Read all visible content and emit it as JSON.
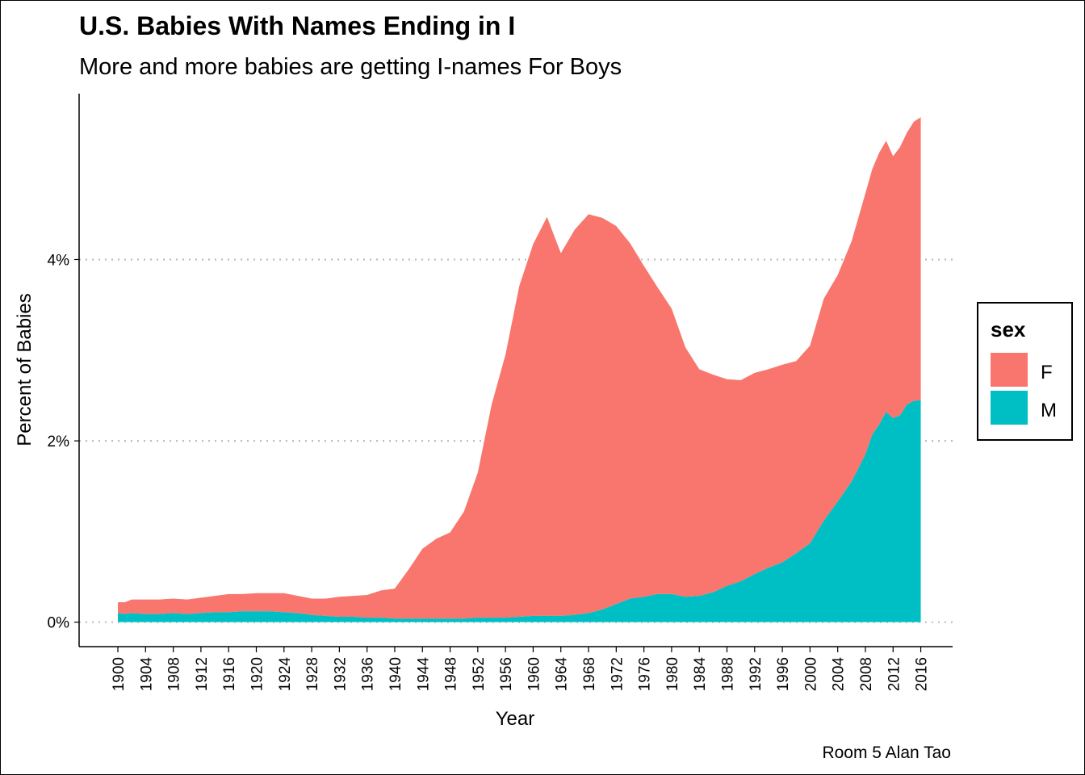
{
  "chart_data": {
    "type": "area",
    "stacked": true,
    "title": "U.S. Babies With Names Ending in I",
    "subtitle": "More and more babies are getting I-names For Boys",
    "xlabel": "Year",
    "ylabel": "Percent of Babies",
    "caption": "Room 5 Alan Tao",
    "x_ticks": [
      1900,
      1904,
      1908,
      1912,
      1916,
      1920,
      1924,
      1928,
      1932,
      1936,
      1940,
      1944,
      1948,
      1952,
      1956,
      1960,
      1964,
      1968,
      1972,
      1976,
      1980,
      1984,
      1988,
      1992,
      1996,
      2000,
      2004,
      2008,
      2012,
      2016
    ],
    "y_ticks": [
      0,
      0.02,
      0.04
    ],
    "y_tick_labels": [
      "0%",
      "2%",
      "4%"
    ],
    "xlim": [
      1894.4,
      2020.6
    ],
    "ylim": [
      -0.0027,
      0.0583
    ],
    "grid": "horizontal dotted major",
    "legend": {
      "title": "sex",
      "position": "right",
      "entries": [
        "F",
        "M"
      ]
    },
    "colors": {
      "F": "#F8766D",
      "M": "#00BFC4"
    },
    "series": [
      {
        "name": "M",
        "x": [
          1900,
          1901,
          1902,
          1904,
          1906,
          1908,
          1910,
          1912,
          1914,
          1916,
          1918,
          1920,
          1922,
          1924,
          1926,
          1928,
          1930,
          1932,
          1934,
          1936,
          1938,
          1940,
          1942,
          1944,
          1946,
          1948,
          1950,
          1952,
          1954,
          1956,
          1958,
          1960,
          1962,
          1964,
          1966,
          1968,
          1970,
          1972,
          1974,
          1976,
          1978,
          1980,
          1982,
          1984,
          1986,
          1988,
          1990,
          1992,
          1994,
          1996,
          1998,
          2000,
          2002,
          2004,
          2006,
          2008,
          2009,
          2010,
          2011,
          2012,
          2013,
          2014,
          2015,
          2016
        ],
        "values": [
          0.001,
          0.0009,
          0.001,
          0.0009,
          0.0009,
          0.001,
          0.0009,
          0.001,
          0.0011,
          0.0011,
          0.0012,
          0.0012,
          0.0012,
          0.0011,
          0.001,
          0.0008,
          0.0007,
          0.0006,
          0.0006,
          0.0005,
          0.0005,
          0.0004,
          0.0004,
          0.0004,
          0.0004,
          0.0004,
          0.0004,
          0.0005,
          0.0005,
          0.0005,
          0.0006,
          0.0007,
          0.0007,
          0.0007,
          0.0008,
          0.001,
          0.0014,
          0.002,
          0.0026,
          0.0028,
          0.0031,
          0.0031,
          0.0028,
          0.0029,
          0.0033,
          0.004,
          0.0045,
          0.0053,
          0.006,
          0.0066,
          0.0076,
          0.0087,
          0.0112,
          0.0133,
          0.0155,
          0.0185,
          0.0207,
          0.0218,
          0.0232,
          0.0225,
          0.0228,
          0.024,
          0.0244,
          0.0245
        ]
      },
      {
        "name": "F",
        "x": [
          1900,
          1901,
          1902,
          1904,
          1906,
          1908,
          1910,
          1912,
          1914,
          1916,
          1918,
          1920,
          1922,
          1924,
          1926,
          1928,
          1930,
          1932,
          1934,
          1936,
          1938,
          1940,
          1942,
          1944,
          1946,
          1948,
          1950,
          1952,
          1954,
          1956,
          1958,
          1960,
          1962,
          1964,
          1966,
          1968,
          1970,
          1972,
          1974,
          1976,
          1978,
          1980,
          1982,
          1984,
          1986,
          1988,
          1990,
          1992,
          1994,
          1996,
          1998,
          2000,
          2002,
          2004,
          2006,
          2008,
          2009,
          2010,
          2011,
          2012,
          2013,
          2014,
          2015,
          2016
        ],
        "values": [
          0.0012,
          0.0013,
          0.0015,
          0.0016,
          0.0016,
          0.0016,
          0.0016,
          0.0017,
          0.0018,
          0.002,
          0.0019,
          0.002,
          0.002,
          0.0021,
          0.0019,
          0.0018,
          0.0019,
          0.0022,
          0.0023,
          0.0025,
          0.003,
          0.0033,
          0.0054,
          0.0077,
          0.0088,
          0.0095,
          0.0118,
          0.016,
          0.0235,
          0.029,
          0.0365,
          0.041,
          0.044,
          0.04,
          0.0425,
          0.044,
          0.0432,
          0.0417,
          0.0392,
          0.0365,
          0.0338,
          0.0315,
          0.0275,
          0.025,
          0.024,
          0.0228,
          0.0222,
          0.0222,
          0.0219,
          0.0218,
          0.0212,
          0.0218,
          0.0245,
          0.025,
          0.0265,
          0.0288,
          0.0293,
          0.03,
          0.0299,
          0.0289,
          0.0296,
          0.03,
          0.0308,
          0.0312
        ]
      }
    ]
  }
}
